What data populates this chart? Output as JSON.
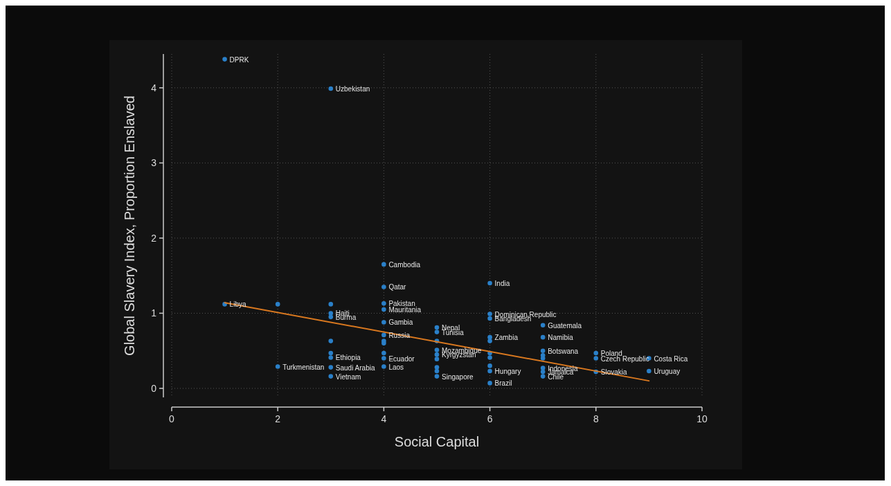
{
  "chart_data": {
    "type": "scatter",
    "xlabel": "Social Capital",
    "ylabel": "Global Slavery Index, Proportion Enslaved",
    "xlim": [
      0,
      10
    ],
    "xticks": [
      0,
      2,
      4,
      6,
      8,
      10
    ],
    "ylim": [
      -0.12,
      4.45
    ],
    "yticks": [
      0,
      1,
      2,
      3,
      4
    ],
    "grid": true,
    "series": [
      {
        "marker": "circle",
        "color": "#2a80c9",
        "x": [
          1,
          1,
          2,
          2,
          3,
          3,
          3,
          3,
          3,
          3,
          3,
          3,
          3,
          4,
          4,
          4,
          4,
          4,
          4,
          4,
          4,
          4,
          4,
          4,
          5,
          5,
          5,
          5,
          5,
          5,
          5,
          5,
          5,
          6,
          6,
          6,
          6,
          6,
          6,
          6,
          6,
          6,
          6,
          7,
          7,
          7,
          7,
          7,
          7,
          7,
          7,
          8,
          8,
          8,
          9,
          9
        ],
        "values": [
          4.38,
          1.12,
          1.12,
          0.29,
          3.99,
          1.12,
          1.0,
          0.95,
          0.63,
          0.47,
          0.41,
          0.28,
          0.16,
          1.65,
          1.35,
          1.13,
          1.05,
          0.88,
          0.71,
          0.63,
          0.47,
          0.4,
          0.29,
          0.6,
          0.81,
          0.75,
          0.63,
          0.51,
          0.45,
          0.39,
          0.28,
          0.23,
          0.16,
          1.4,
          0.99,
          0.93,
          0.68,
          0.63,
          0.47,
          0.41,
          0.3,
          0.23,
          0.07,
          0.84,
          0.68,
          0.5,
          0.44,
          0.4,
          0.27,
          0.22,
          0.16,
          0.47,
          0.4,
          0.22,
          0.4,
          0.23
        ]
      },
      {
        "type": "line",
        "color": "#d9781f",
        "x": [
          1,
          9
        ],
        "values": [
          1.14,
          0.1
        ]
      }
    ],
    "annotations": [
      {
        "text": "DPRK",
        "x": 1,
        "y": 4.38
      },
      {
        "text": "Libya",
        "x": 1,
        "y": 1.12
      },
      {
        "text": "Turkmenistan",
        "x": 2,
        "y": 0.29
      },
      {
        "text": "Uzbekistan",
        "x": 3,
        "y": 3.99
      },
      {
        "text": "Haiti",
        "x": 3,
        "y": 1.0
      },
      {
        "text": "Burma",
        "x": 3,
        "y": 0.95
      },
      {
        "text": "Ethiopia",
        "x": 3,
        "y": 0.41
      },
      {
        "text": "Saudi Arabia",
        "x": 3,
        "y": 0.28
      },
      {
        "text": "Vietnam",
        "x": 3,
        "y": 0.16
      },
      {
        "text": "Cambodia",
        "x": 4,
        "y": 1.65
      },
      {
        "text": "Qatar",
        "x": 4,
        "y": 1.35
      },
      {
        "text": "Pakistan",
        "x": 4,
        "y": 1.13
      },
      {
        "text": "Mauritania",
        "x": 4,
        "y": 1.05
      },
      {
        "text": "Gambia",
        "x": 4,
        "y": 0.88
      },
      {
        "text": "Russia",
        "x": 4,
        "y": 0.71
      },
      {
        "text": "Ecuador",
        "x": 4,
        "y": 0.4
      },
      {
        "text": "Laos",
        "x": 4,
        "y": 0.29
      },
      {
        "text": "Nepal",
        "x": 5,
        "y": 0.81
      },
      {
        "text": "Tunisia",
        "x": 5,
        "y": 0.75
      },
      {
        "text": "Mozambique",
        "x": 5,
        "y": 0.51
      },
      {
        "text": "Kyrgyzstan",
        "x": 5,
        "y": 0.45
      },
      {
        "text": "Singapore",
        "x": 5,
        "y": 0.16
      },
      {
        "text": "India",
        "x": 6,
        "y": 1.4
      },
      {
        "text": "Dominican Republic",
        "x": 6,
        "y": 0.99
      },
      {
        "text": "Bangladesh",
        "x": 6,
        "y": 0.93
      },
      {
        "text": "Zambia",
        "x": 6,
        "y": 0.68
      },
      {
        "text": "Hungary",
        "x": 6,
        "y": 0.23
      },
      {
        "text": "Brazil",
        "x": 6,
        "y": 0.07
      },
      {
        "text": "Guatemala",
        "x": 7,
        "y": 0.84
      },
      {
        "text": "Namibia",
        "x": 7,
        "y": 0.68
      },
      {
        "text": "Botswana",
        "x": 7,
        "y": 0.5
      },
      {
        "text": "Indonesia",
        "x": 7,
        "y": 0.27
      },
      {
        "text": "Jamaica",
        "x": 7,
        "y": 0.22
      },
      {
        "text": "Chile",
        "x": 7,
        "y": 0.16
      },
      {
        "text": "Poland",
        "x": 8,
        "y": 0.47
      },
      {
        "text": "Czech Republic",
        "x": 8,
        "y": 0.4
      },
      {
        "text": "Slovakia",
        "x": 8,
        "y": 0.22
      },
      {
        "text": "Costa Rica",
        "x": 9,
        "y": 0.4
      },
      {
        "text": "Uruguay",
        "x": 9,
        "y": 0.23
      }
    ]
  }
}
